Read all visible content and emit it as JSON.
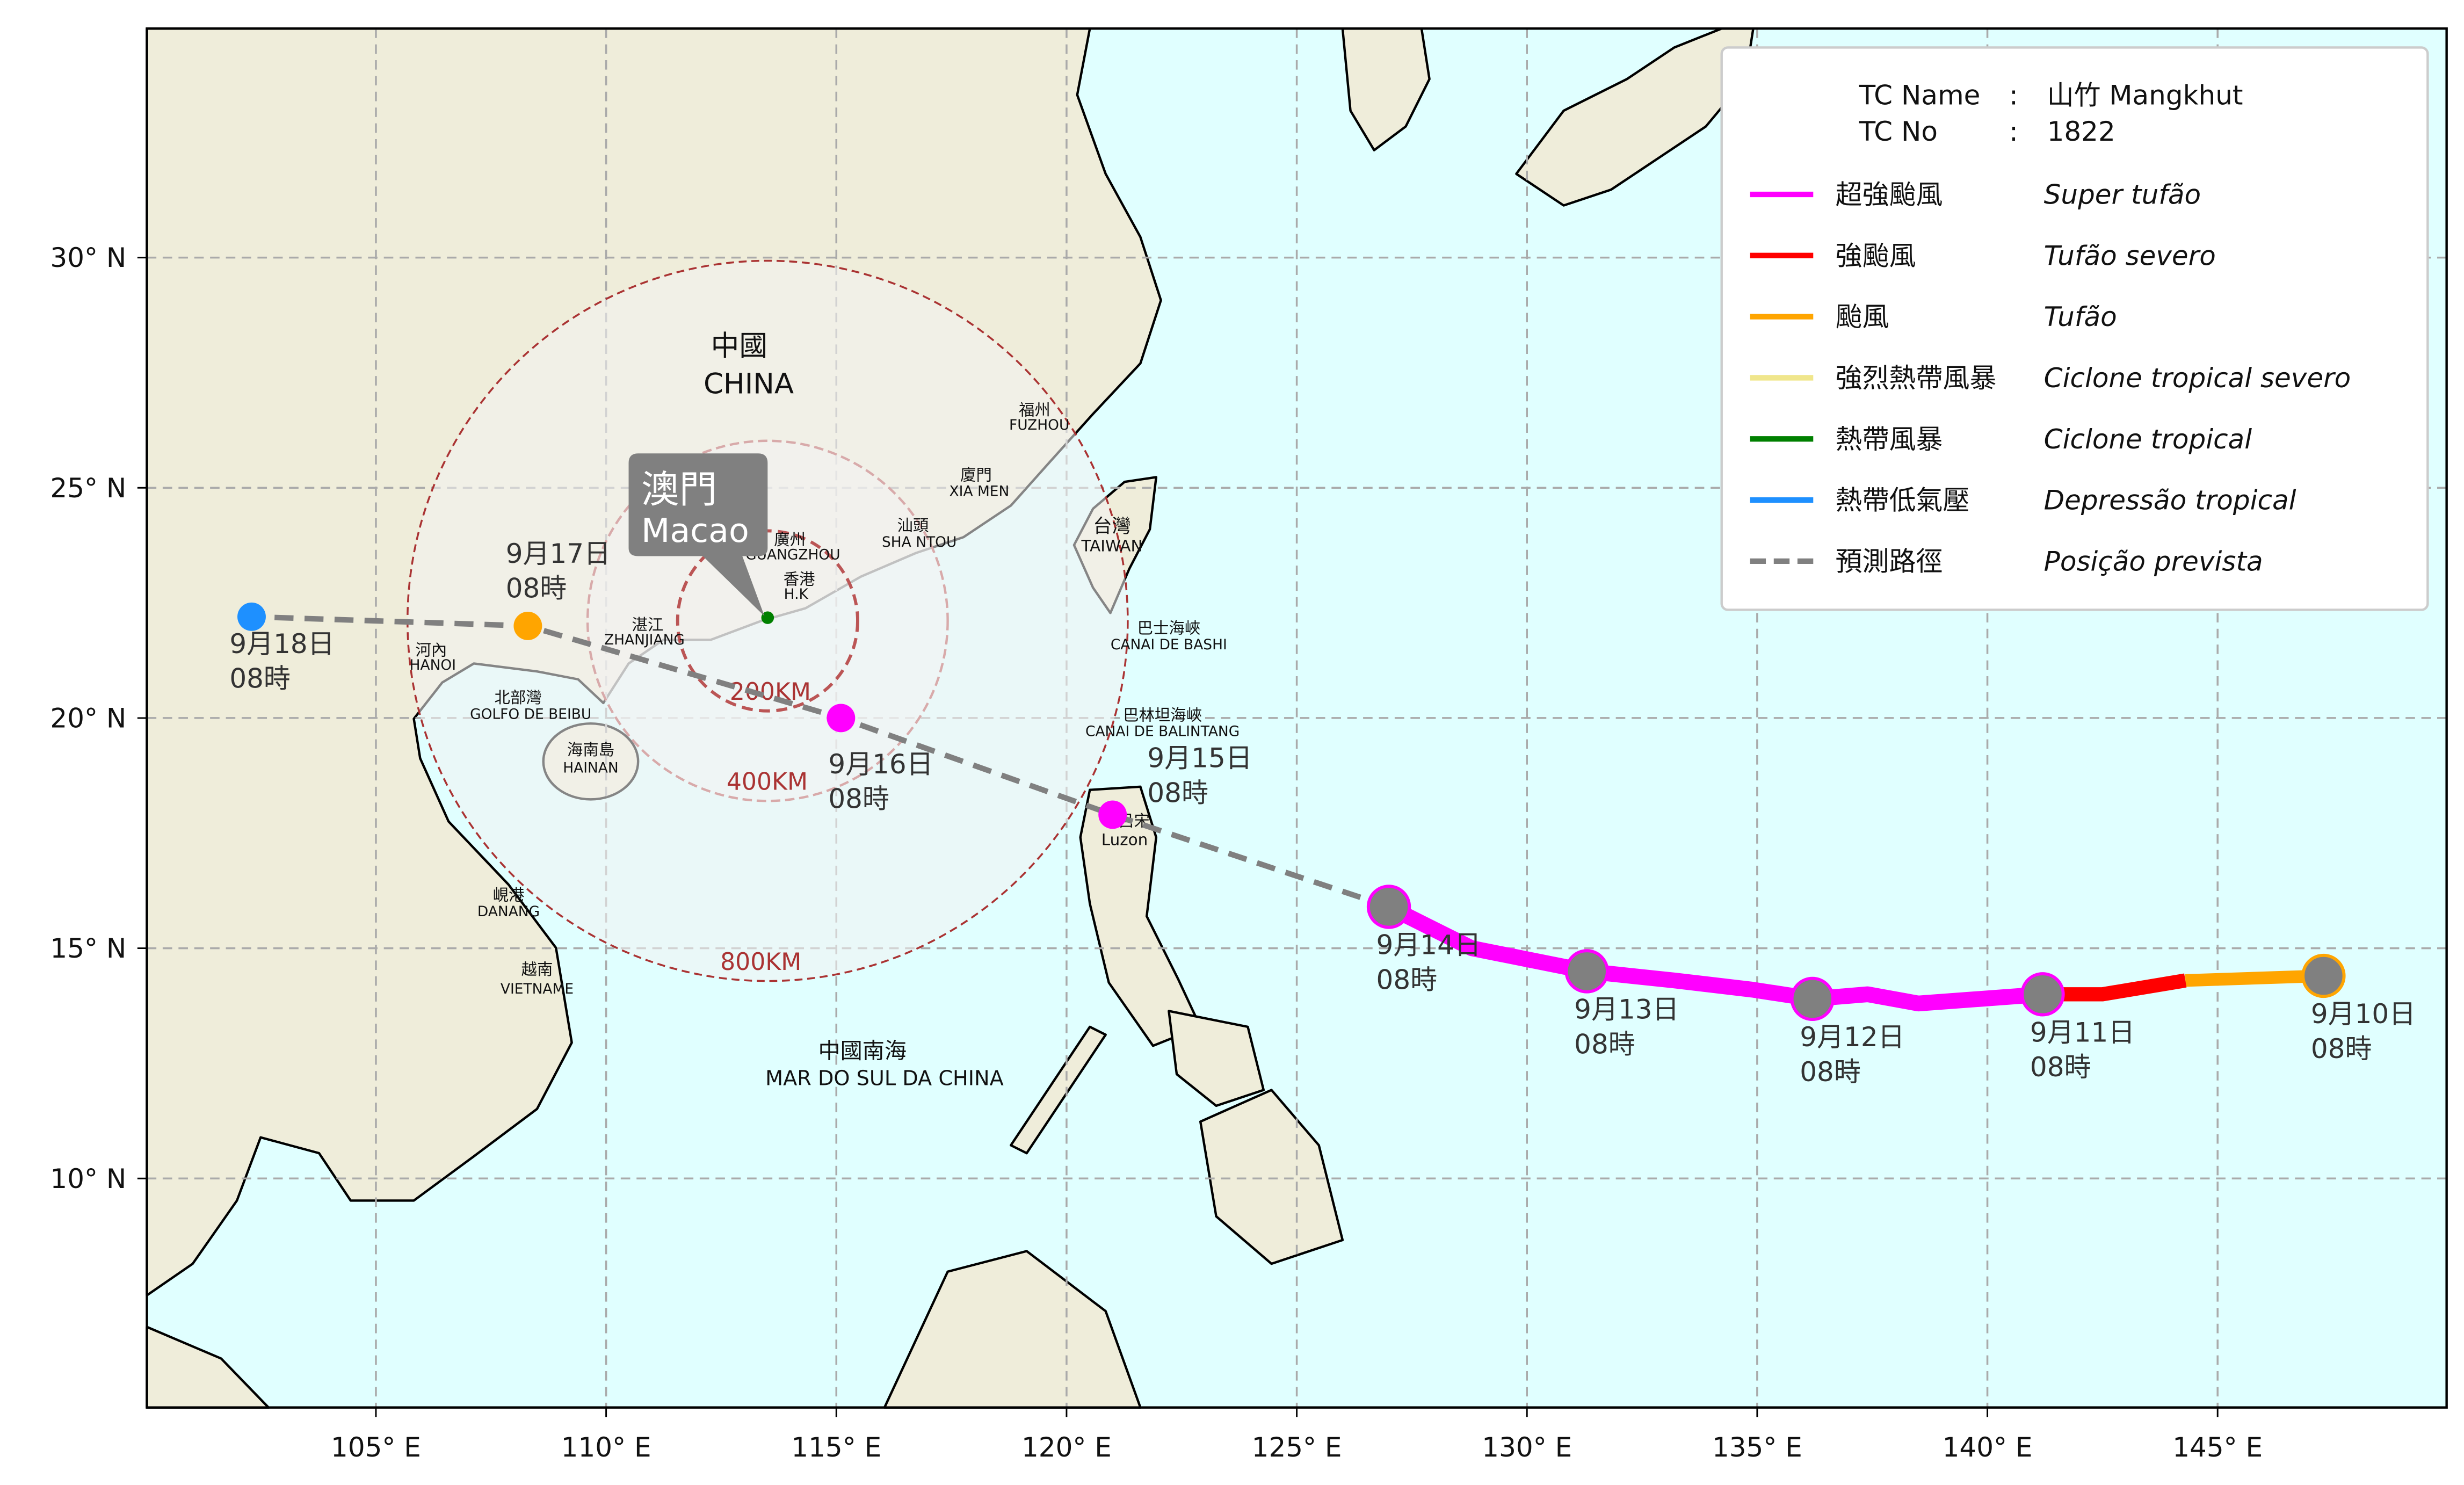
{
  "map": {
    "lon_ticks": [
      "105° E",
      "110° E",
      "115° E",
      "120° E",
      "125° E",
      "130° E",
      "135° E",
      "140° E",
      "145° E"
    ],
    "lat_ticks": [
      "30° N",
      "25° N",
      "20° N",
      "15° N",
      "10° N"
    ],
    "colors": {
      "sea": "#e0ffff",
      "land": "#efedda",
      "grid": "#aaaaaa"
    },
    "places": {
      "china_cn": "中國",
      "china": "CHINA",
      "fuzhou_cn": "福州",
      "fuzhou": "FUZHOU",
      "xiamen_cn": "廈門",
      "xiamen": "XIA MEN",
      "shantou_cn": "汕頭",
      "shantou": "SHA NTOU",
      "guangzhou_cn": "廣州",
      "guangzhou": "GUANGZHOU",
      "hk_cn": "香港",
      "hk": "H.K",
      "zhanjiang_cn": "湛江",
      "zhanjiang": "ZHANJIANG",
      "hanoi_cn": "河內",
      "hanoi": "HANOI",
      "beibu_cn": "北部灣",
      "beibu": "GOLFO DE BEIBU",
      "hainan_cn": "海南島",
      "hainan": "HAINAN",
      "danang_cn": "峴港",
      "danang": "DANANG",
      "vietnam_cn": "越南",
      "vietnam": "VIETNAME",
      "scs_cn": "中國南海",
      "scs": "MAR DO SUL DA CHINA",
      "taiwan_cn": "台灣",
      "taiwan": "TAIWAN",
      "bashi_cn": "巴士海峽",
      "bashi": "CANAI DE BASHI",
      "balintang_cn": "巴林坦海峽",
      "balintang": "CANAI DE BALINTANG",
      "luzon_cn": "呂宋",
      "luzon": "Luzon"
    },
    "macao_callout": {
      "cn": "澳門",
      "pt": "Macao"
    },
    "radius_labels": [
      "200KM",
      "400KM",
      "800KM"
    ]
  },
  "track": {
    "observed": [
      {
        "date": "9月10日",
        "time": "08時",
        "lon": 147.3,
        "lat": 14.4,
        "intensity": "typhoon"
      },
      {
        "date": "9月11日",
        "time": "08時",
        "lon": 141.2,
        "lat": 14.0,
        "intensity": "super_typhoon"
      },
      {
        "date": "9月12日",
        "time": "08時",
        "lon": 136.2,
        "lat": 13.9,
        "intensity": "super_typhoon"
      },
      {
        "date": "9月13日",
        "time": "08時",
        "lon": 131.3,
        "lat": 14.5,
        "intensity": "super_typhoon"
      },
      {
        "date": "9月14日",
        "time": "08時",
        "lon": 127.0,
        "lat": 15.9,
        "intensity": "super_typhoon"
      }
    ],
    "forecast": [
      {
        "date": "9月15日",
        "time": "08時",
        "lon": 121.0,
        "lat": 17.9,
        "intensity": "super_typhoon"
      },
      {
        "date": "9月16日",
        "time": "08時",
        "lon": 115.1,
        "lat": 20.0,
        "intensity": "super_typhoon"
      },
      {
        "date": "9月17日",
        "time": "08時",
        "lon": 108.3,
        "lat": 22.0,
        "intensity": "typhoon"
      },
      {
        "date": "9月18日",
        "time": "08時",
        "lon": 102.3,
        "lat": 22.2,
        "intensity": "tropical_depression"
      }
    ]
  },
  "legend": {
    "tc_name_label": "TC Name",
    "tc_name": "山竹 Mangkhut",
    "tc_no_label": "TC No",
    "tc_no": "1822",
    "items": [
      {
        "cn": "超強颱風",
        "pt": "Super tufão",
        "color": "#ff00ff"
      },
      {
        "cn": "強颱風",
        "pt": "Tufão severo",
        "color": "#ff0000"
      },
      {
        "cn": "颱風",
        "pt": "Tufão",
        "color": "#ffa500"
      },
      {
        "cn": "強烈熱帶風暴",
        "pt": "Ciclone tropical severo",
        "color": "#f0e68c"
      },
      {
        "cn": "熱帶風暴",
        "pt": "Ciclone tropical",
        "color": "#008000"
      },
      {
        "cn": "熱帶低氣壓",
        "pt": "Depressão tropical",
        "color": "#1e90ff"
      },
      {
        "cn": "預測路徑",
        "pt": "Posição prevista",
        "color": "#808080"
      }
    ]
  }
}
